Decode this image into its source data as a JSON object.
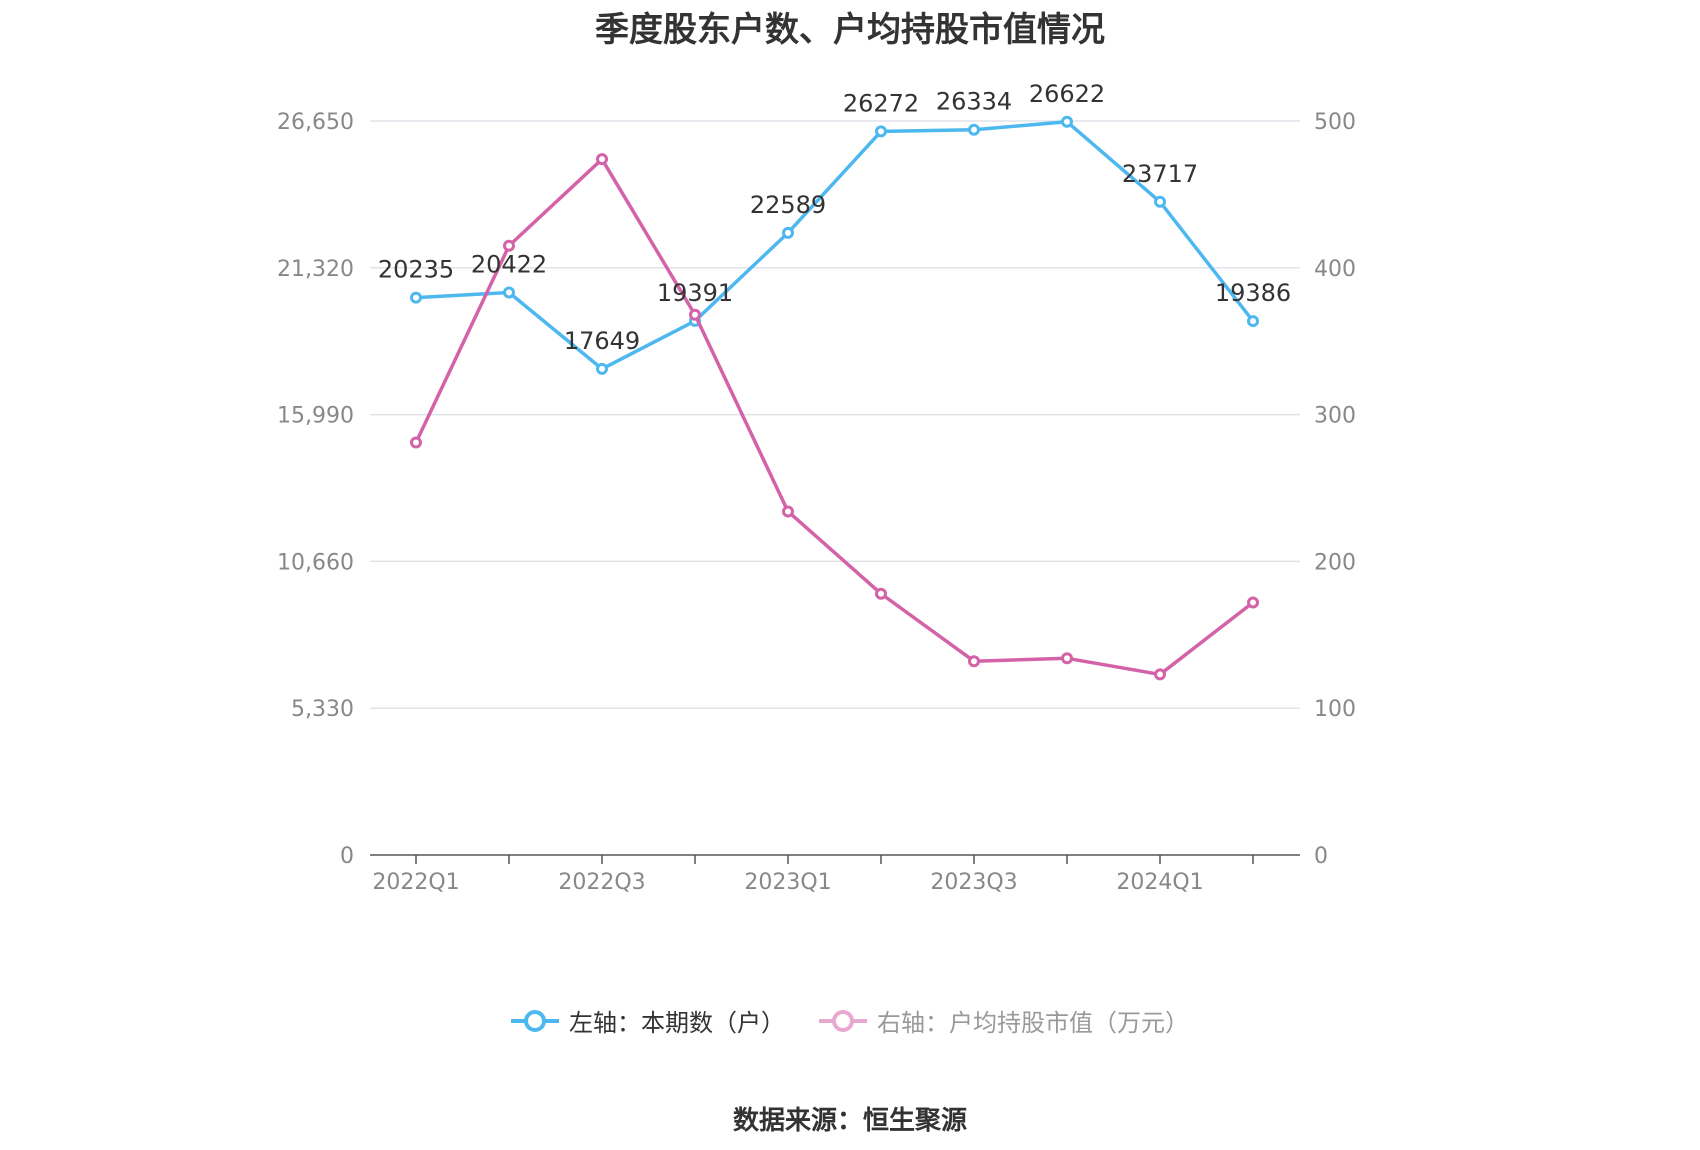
{
  "title": "季度股东户数、户均持股市值情况",
  "source": "数据来源：恒生聚源",
  "legend": [
    {
      "label": "左轴：本期数（户）",
      "color": "#4db8f0"
    },
    {
      "label": "右轴：户均持股市值（万元）",
      "color": "#e8a8d0"
    }
  ],
  "chart_data": {
    "type": "line",
    "categories": [
      "2022Q1",
      "2022Q2",
      "2022Q3",
      "2022Q4",
      "2023Q1",
      "2023Q2",
      "2023Q3",
      "2023Q4",
      "2024Q1",
      "2024Q2"
    ],
    "x_tick_labels": [
      "2022Q1",
      "2022Q3",
      "2023Q1",
      "2023Q3",
      "2024Q1"
    ],
    "left_axis": {
      "ticks": [
        0,
        5330,
        10660,
        15990,
        21320,
        26650
      ],
      "tick_labels": [
        "0",
        "5,330",
        "10,660",
        "15,990",
        "21,320",
        "26,650"
      ],
      "ylim": [
        0,
        26650
      ]
    },
    "right_axis": {
      "ticks": [
        0,
        100,
        200,
        300,
        400,
        500
      ],
      "tick_labels": [
        "0",
        "100",
        "200",
        "300",
        "400",
        "500"
      ],
      "ylim": [
        0,
        500
      ]
    },
    "grid": true,
    "legend_position": "bottom",
    "series": [
      {
        "name": "左轴：本期数（户）",
        "axis": "left",
        "color": "#4db8f0",
        "values": [
          20235,
          20422,
          17649,
          19391,
          22589,
          26272,
          26334,
          26622,
          23717,
          19386
        ],
        "labels": [
          "20235",
          "20422",
          "17649",
          "19391",
          "22589",
          "26272",
          "26334",
          "26622",
          "23717",
          "19386"
        ]
      },
      {
        "name": "右轴：户均持股市值（万元）",
        "axis": "right",
        "color": "#d462a8",
        "values": [
          281,
          415,
          474,
          368,
          234,
          178,
          132,
          134,
          123,
          172
        ]
      }
    ]
  }
}
